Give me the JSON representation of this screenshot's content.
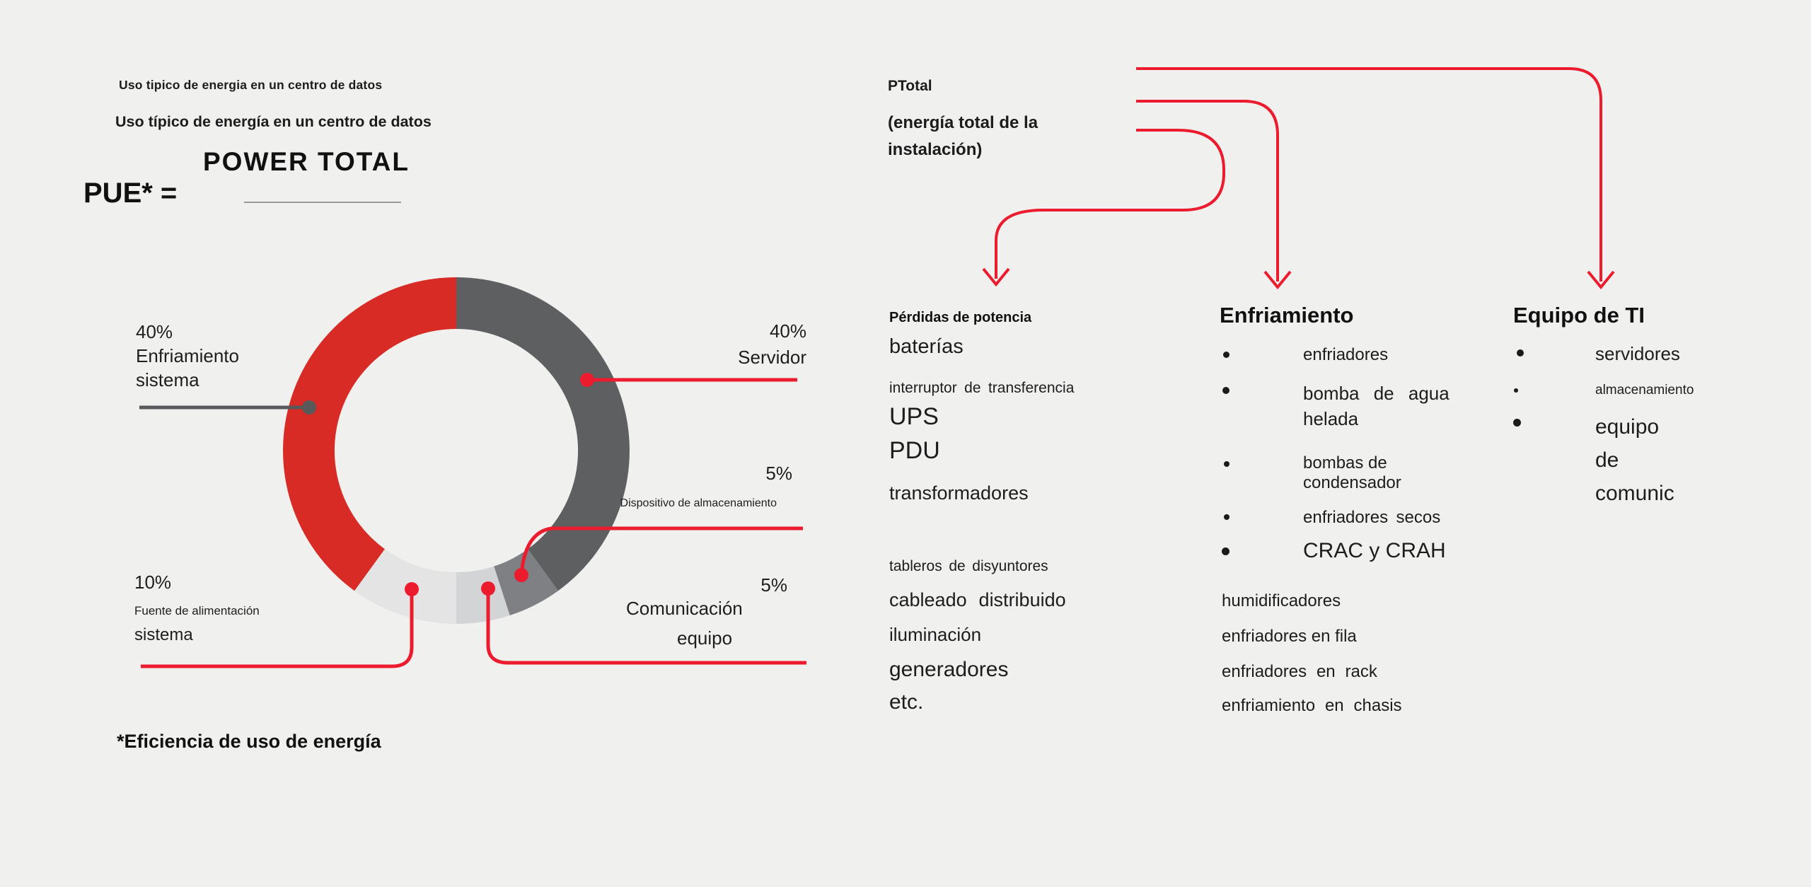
{
  "header": {
    "title_small": "Uso tipico de energia en un centro de datos",
    "title_large": "Uso típico de energía en un centro de datos"
  },
  "formula": {
    "lhs": "PUE* =",
    "numerator": "POWER TOTAL",
    "footnote": "*Eficiencia de uso de energía"
  },
  "ptotal": {
    "name": "PTotal",
    "description": "(energía total de la\ninstalación)"
  },
  "chart_data": {
    "type": "pie",
    "donut": true,
    "title": "Uso típico de energía en un centro de datos",
    "units": "percent",
    "segments": [
      {
        "label": "Servidor",
        "value": 40,
        "color": "#5e5f61"
      },
      {
        "label": "Dispositivo de almacenamiento",
        "value": 5,
        "color": "#7e8083"
      },
      {
        "label": "Comunicación equipo",
        "value": 5,
        "color": "#d3d4d6"
      },
      {
        "label": "Fuente de alimentación sistema",
        "value": 10,
        "color": "#e4e4e5"
      },
      {
        "label": "Enfriamiento sistema",
        "value": 40,
        "color": "#d92b26"
      }
    ]
  },
  "labels": {
    "enfriamiento": "40%\nEnfriamiento\nsistema",
    "servidor": "40%\nServidor",
    "dispositivo_pct": "5%",
    "dispositivo": "Dispositivo de almacenamiento",
    "comunicacion_pct": "5%",
    "comunicacion_l1": "Comunicación",
    "comunicacion_l2": "equipo",
    "fuente_pct": "10%",
    "fuente_l1": "Fuente de alimentación",
    "fuente_l2": "sistema"
  },
  "col_perdidas": {
    "heading": "Pérdidas de potencia",
    "items": [
      "baterías",
      "interruptor de transferencia",
      "UPS",
      "PDU",
      "transformadores",
      "tableros de disyuntores",
      "cableado distribuido",
      "iluminación",
      "generadores",
      "etc."
    ]
  },
  "col_enfriamiento": {
    "heading": "Enfriamiento",
    "bullets": [
      "enfriadores",
      "bomba de agua\nhelada",
      "bombas de\ncondensador",
      "enfriadores secos",
      "CRAC y CRAH"
    ],
    "plain": [
      "humidificadores",
      "enfriadores en fila",
      "enfriadores en rack",
      "enfriamiento en chasis"
    ]
  },
  "col_ti": {
    "heading": "Equipo de TI",
    "bullets": [
      "servidores",
      "almacenamiento",
      "equipo\nde\ncomunic"
    ]
  },
  "colors": {
    "background": "#f0f0ef",
    "arrow_red": "#ec1b2e",
    "chart_red": "#d92b26",
    "connector_gray": "#58595b"
  }
}
